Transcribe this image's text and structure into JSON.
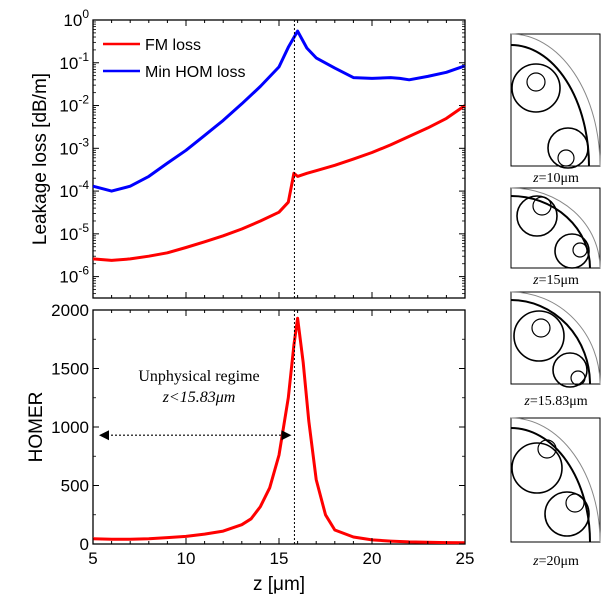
{
  "chart_data": [
    {
      "type": "line",
      "ylabel": "Leakage loss [dB/m]",
      "yscale": "log",
      "ylim_exponents": [
        -6.5,
        0
      ],
      "xlim": [
        5,
        25
      ],
      "grid": false,
      "legend_position": "top-left",
      "yticks": [
        {
          "base": "10",
          "exp": "0"
        },
        {
          "base": "10",
          "exp": "-1"
        },
        {
          "base": "10",
          "exp": "-2"
        },
        {
          "base": "10",
          "exp": "-3"
        },
        {
          "base": "10",
          "exp": "-4"
        },
        {
          "base": "10",
          "exp": "-5"
        },
        {
          "base": "10",
          "exp": "-6"
        }
      ],
      "vline_x": 15.83,
      "series": [
        {
          "name": "FM loss",
          "color": "#ff0000",
          "x": [
            5,
            6,
            7,
            8,
            9,
            10,
            11,
            12,
            13,
            14,
            15,
            15.5,
            15.8,
            16,
            16.5,
            17,
            18,
            19,
            20,
            21,
            22,
            23,
            24,
            25
          ],
          "y": [
            2.6e-06,
            2.4e-06,
            2.6e-06,
            3e-06,
            3.6e-06,
            4.8e-06,
            6.5e-06,
            9e-06,
            1.3e-05,
            2e-05,
            3.2e-05,
            5.5e-05,
            0.00026,
            0.00022,
            0.00026,
            0.0003,
            0.0004,
            0.00056,
            0.0008,
            0.0012,
            0.0019,
            0.003,
            0.005,
            0.01
          ]
        },
        {
          "name": "Min HOM loss",
          "color": "#0000ff",
          "x": [
            5,
            6,
            7,
            8,
            9,
            10,
            11,
            12,
            13,
            14,
            15,
            15.5,
            16,
            16.5,
            17,
            18,
            19,
            20,
            21,
            21.5,
            22,
            23,
            24,
            25
          ],
          "y": [
            0.00013,
            0.0001,
            0.00013,
            0.00022,
            0.00045,
            0.0009,
            0.002,
            0.0045,
            0.011,
            0.028,
            0.08,
            0.23,
            0.55,
            0.22,
            0.13,
            0.075,
            0.045,
            0.043,
            0.045,
            0.043,
            0.04,
            0.048,
            0.06,
            0.085
          ]
        }
      ]
    },
    {
      "type": "line",
      "xlabel": "z [μm]",
      "ylabel": "HOMER",
      "xlim": [
        5,
        25
      ],
      "ylim": [
        0,
        2000
      ],
      "xticks": [
        5,
        10,
        15,
        20,
        25
      ],
      "yticks": [
        0,
        500,
        1000,
        1500,
        2000
      ],
      "grid": false,
      "vline_x": 15.83,
      "annotation": {
        "line1": "Unphysical regime",
        "line2": "z<15.83μm",
        "arrow_from_x": 5,
        "arrow_to_x": 15.83,
        "arrow_y": 930
      },
      "series": [
        {
          "name": "HOMER",
          "color": "#ff0000",
          "x": [
            5,
            6,
            7,
            8,
            9,
            10,
            11,
            12,
            13,
            13.5,
            14,
            14.5,
            15,
            15.5,
            15.8,
            16,
            16.3,
            16.6,
            17,
            17.5,
            18,
            19,
            20,
            21,
            22,
            23,
            24,
            25
          ],
          "y": [
            45,
            40,
            40,
            45,
            55,
            65,
            85,
            110,
            165,
            215,
            320,
            480,
            760,
            1250,
            1700,
            1930,
            1550,
            1050,
            550,
            250,
            120,
            60,
            35,
            25,
            18,
            15,
            12,
            10
          ]
        }
      ]
    }
  ],
  "insets": [
    {
      "z_prefix": "z",
      "value": "=10μm"
    },
    {
      "z_prefix": "z",
      "value": "=15μm"
    },
    {
      "z_prefix": "z",
      "value": "=15.83μm"
    },
    {
      "z_prefix": "z",
      "value": "=20μm"
    }
  ]
}
